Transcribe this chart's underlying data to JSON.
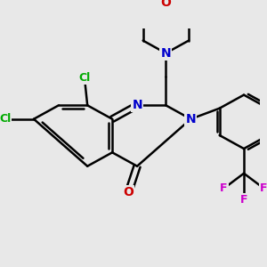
{
  "bg_color": "#e8e8e8",
  "atom_colors": {
    "C": "#000000",
    "N": "#0000cc",
    "O": "#cc0000",
    "Cl": "#00aa00",
    "F": "#cc00cc"
  },
  "bond_color": "#000000",
  "bond_width": 1.8,
  "dbo": 0.012
}
